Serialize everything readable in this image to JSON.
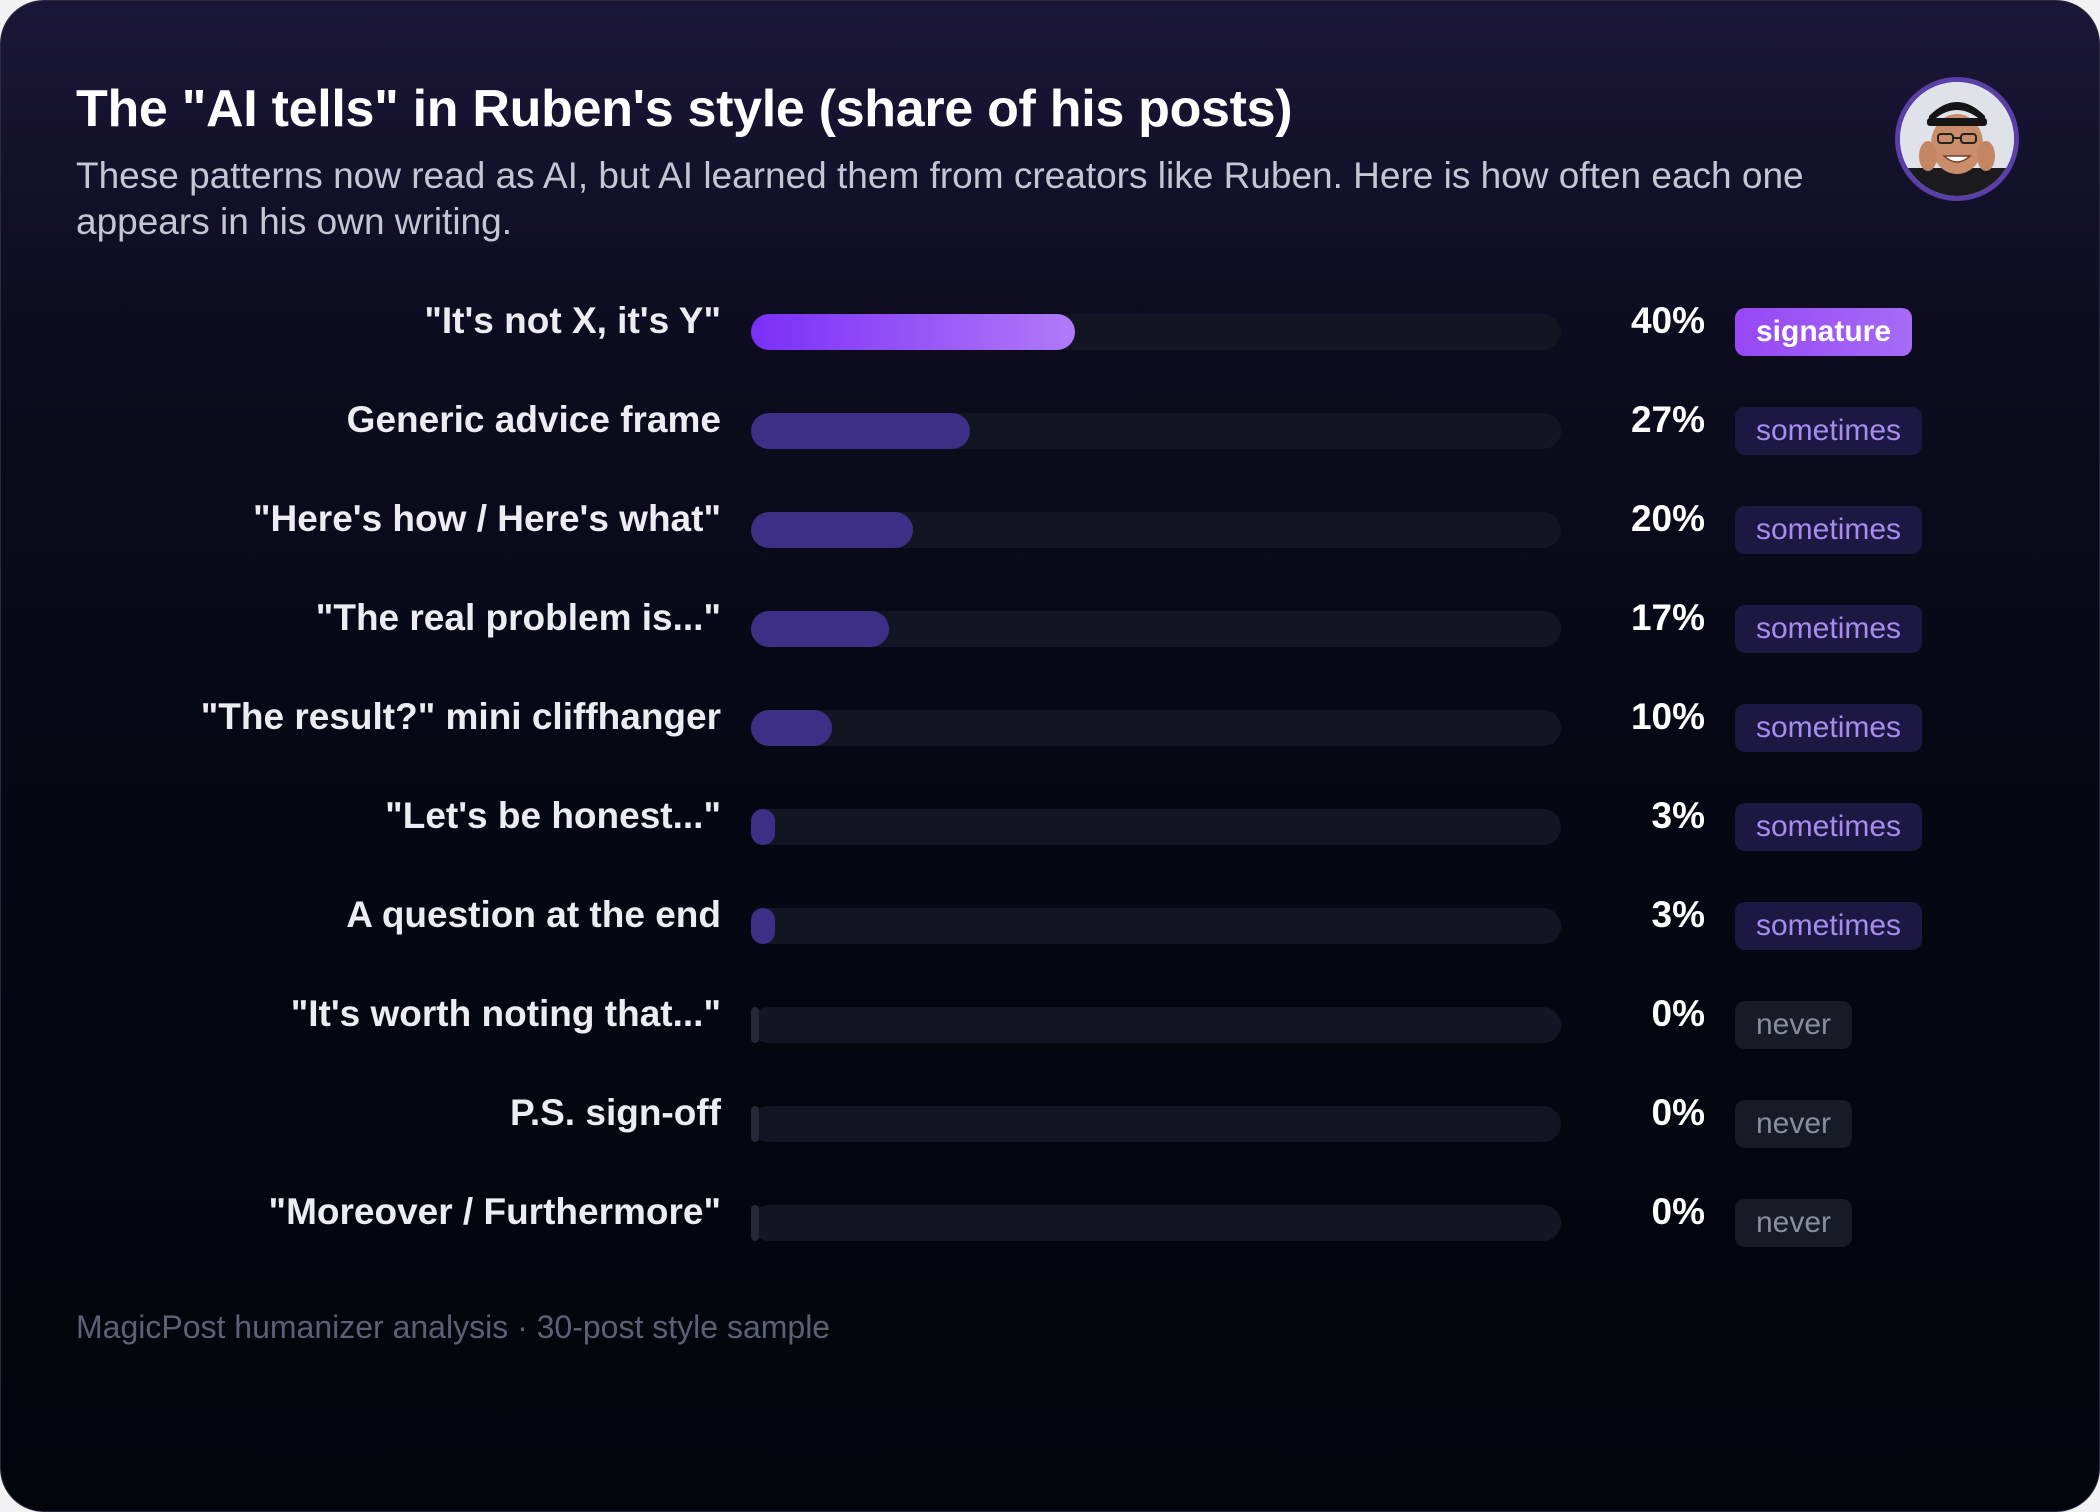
{
  "header": {
    "title": "The \"AI tells\" in Ruben's style (share of his posts)",
    "subtitle": "These patterns now read as AI, but AI learned them from creators like Ruben. Here is how often each one appears in his own writing."
  },
  "footer": "MagicPost humanizer analysis · 30-post style sample",
  "colors": {
    "signature_fill_start": "#7b2ff7",
    "signature_fill_end": "#b07af8",
    "sometimes_fill": "#3e2f86",
    "never_fill": "#262838",
    "track": "#141522"
  },
  "chart_data": {
    "type": "bar",
    "orientation": "horizontal",
    "title": "The \"AI tells\" in Ruben's style (share of his posts)",
    "xlim": [
      0,
      100
    ],
    "unit": "%",
    "categories": [
      "\"It's not X, it's Y\"",
      "Generic advice frame",
      "\"Here's how / Here's what\"",
      "\"The real problem is...\"",
      "\"The result?\" mini cliffhanger",
      "\"Let's be honest...\"",
      "A question at the end",
      "\"It's worth noting that...\"",
      "P.S. sign-off",
      "\"Moreover / Furthermore\""
    ],
    "values": [
      40,
      27,
      20,
      17,
      10,
      3,
      3,
      0,
      0,
      0
    ],
    "value_labels": [
      "40%",
      "27%",
      "20%",
      "17%",
      "10%",
      "3%",
      "3%",
      "0%",
      "0%",
      "0%"
    ],
    "tags": [
      "signature",
      "sometimes",
      "sometimes",
      "sometimes",
      "sometimes",
      "sometimes",
      "sometimes",
      "never",
      "never",
      "never"
    ]
  }
}
